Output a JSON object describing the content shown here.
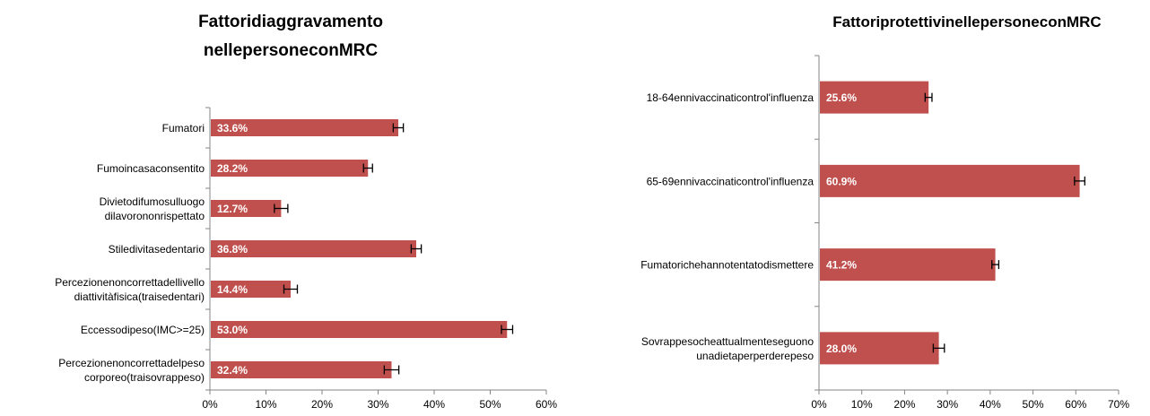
{
  "chart_data": [
    {
      "type": "bar",
      "orientation": "horizontal",
      "title_lines": [
        "Fattori\u001fdi\u001faggravamento\u001f",
        "nelle\u001fpersone\u001fcon\u001fMRC\u001f"
      ],
      "categories": [
        [
          "Fumatori\u001f"
        ],
        [
          "Fumo\u001fin\u001fcasa\u001fconsentito\u001f"
        ],
        [
          "Divieto\u001fdi\u001ffumo\u001fsul\u001fluogo\u001f",
          "di\u001flavoro\u001fnon\u001frispettato\u001f"
        ],
        [
          "Stile\u001fdi\u001fvita\u001fsedentario\u001f"
        ],
        [
          "Percezione\u001fnon\u001fcorretta\u001fdel\u001flivello\u001f",
          "di\u001fattività\u001ffisica\u001f(tra\u001fi\u001fsedentari)\u001f"
        ],
        [
          "Eccesso\u001fdi\u001fpeso\u001f(IMC>=25)\u001f"
        ],
        [
          "Percezione\u001fnon\u001fcorretta\u001fdel\u001fpeso\u001f",
          "corporeo\u001f(tra\u001fi\u001fsovrappeso)\u001f"
        ]
      ],
      "values": [
        33.6,
        28.2,
        12.7,
        36.8,
        14.4,
        53.0,
        32.4
      ],
      "value_labels": [
        "33.6%\u001f",
        "28.2%\u001f",
        "12.7%\u001f",
        "36.8%\u001f",
        "14.4%\u001f",
        "53.0%\u001f",
        "32.4%\u001f"
      ],
      "errors": [
        0.9,
        0.8,
        1.2,
        0.9,
        1.2,
        1.0,
        1.3
      ],
      "xlim": [
        0,
        60
      ],
      "xticks": [
        0,
        10,
        20,
        30,
        40,
        50,
        60
      ],
      "xtick_labels": [
        "0%\u001f",
        "10%\u001f",
        "20%\u001f",
        "30%\u001f",
        "40%\u001f",
        "50%\u001f",
        "60%\u001f"
      ],
      "bar_color": "#c0504d",
      "grid": false
    },
    {
      "type": "bar",
      "orientation": "horizontal",
      "title_lines": [
        "Fattori\u001fprotettivi\u001fnelle\u001fpersone\u001fcon\u001fMRC\u001f"
      ],
      "categories": [
        [
          "18-64enni\u001fvaccinati\u001fcontro\u001fl'influenza\u001f"
        ],
        [
          "65-69enni\u001fvaccinati\u001fcontro\u001fl'influenza\u001f"
        ],
        [
          "Fumatori\u001fche\u001fhanno\u001ftentato\u001fdi\u001fsmettere\u001f"
        ],
        [
          "Sovrappeso\u001fche\u001fattualmente\u001fseguono\u001f",
          "una\u001fdieta\u001fper\u001fperdere\u001fpeso\u001f"
        ]
      ],
      "values": [
        25.6,
        60.9,
        41.2,
        28.0
      ],
      "value_labels": [
        "25.6%\u001f",
        "60.9%\u001f",
        "41.2%\u001f",
        "28.0%\u001f"
      ],
      "errors": [
        0.8,
        1.2,
        0.8,
        1.3
      ],
      "xlim": [
        0,
        70
      ],
      "xticks": [
        0,
        10,
        20,
        30,
        40,
        50,
        60,
        70
      ],
      "xtick_labels": [
        "0%\u001f",
        "10%\u001f",
        "20%\u001f",
        "30%\u001f",
        "40%\u001f",
        "50%\u001f",
        "60%\u001f",
        "70%\u001f"
      ],
      "bar_color": "#c0504d",
      "grid": false
    }
  ]
}
